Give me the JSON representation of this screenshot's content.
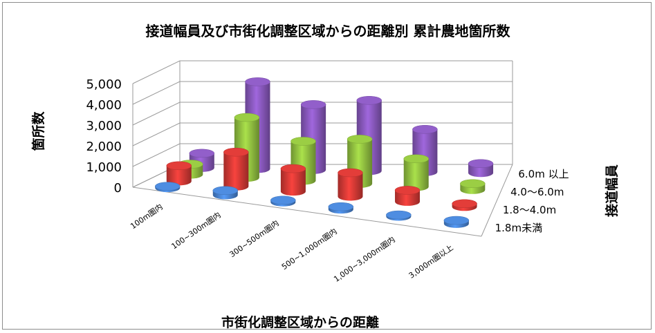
{
  "chart_data": {
    "type": "bar",
    "title": "接道幅員及び市街化調整区域からの距離別 累計農地箇所数",
    "xlabel": "市街化調整区域からの距離",
    "ylabel": "箇所数",
    "zlabel": "接道幅員",
    "categories": [
      "100m圏内",
      "100~300m圏内",
      "300~500m圏内",
      "500~1,000m圏内",
      "1,000~3,000m圏内",
      "3,000m圏以上"
    ],
    "y_ticks": [
      "0",
      "1,000",
      "2,000",
      "3,000",
      "4,000",
      "5,000"
    ],
    "ylim": [
      0,
      5000
    ],
    "series": [
      {
        "name": "1.8m未満",
        "color": "#4a86d6",
        "values": [
          80,
          220,
          100,
          130,
          80,
          160
        ]
      },
      {
        "name": "1.8～4.0m",
        "color": "#d83a36",
        "values": [
          750,
          1650,
          1100,
          1150,
          550,
          150
        ]
      },
      {
        "name": "4.0～6.0m",
        "color": "#94c441",
        "values": [
          500,
          2900,
          1900,
          2150,
          1350,
          300
        ]
      },
      {
        "name": "6.0m 以上",
        "color": "#8b5ac0",
        "values": [
          700,
          4200,
          3150,
          3400,
          2050,
          450
        ]
      }
    ],
    "grid": true,
    "legend": "right"
  }
}
